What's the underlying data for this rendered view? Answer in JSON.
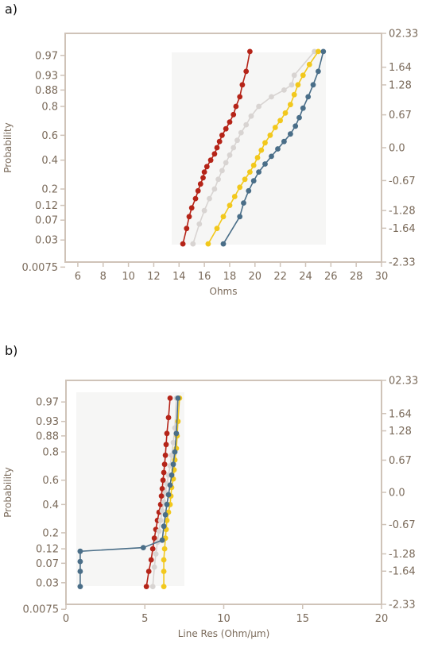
{
  "panels": [
    {
      "id": "a",
      "label": "a)",
      "chart_data": {
        "type": "scatter",
        "xlabel": "Ohms",
        "ylabel": "Probability",
        "xlim": [
          5,
          30
        ],
        "x_ticks": [
          "6",
          "8",
          "10",
          "12",
          "14",
          "16",
          "18",
          "20",
          "22",
          "24",
          "26",
          "28",
          "30"
        ],
        "x_tick_values": [
          6,
          8,
          10,
          12,
          14,
          16,
          18,
          20,
          22,
          24,
          26,
          28,
          30
        ],
        "y_scale": "normal-probability",
        "y_ticks": [
          "0.97",
          "0.93",
          "0.88",
          "0.8",
          "0.6",
          "0.4",
          "0.2",
          "0.12",
          "0.07",
          "0.03",
          "0.0075"
        ],
        "y_tick_values": [
          0.97,
          0.93,
          0.88,
          0.8,
          0.6,
          0.4,
          0.2,
          0.12,
          0.07,
          0.03,
          0.0075
        ],
        "y2_ticks": [
          "02.33",
          "1.64",
          "1.28",
          "0.67",
          "0.0",
          "-0.67",
          "-1.28",
          "-1.64",
          "-2.33"
        ],
        "y2_tick_values": [
          2.33,
          1.64,
          1.28,
          0.67,
          0.0,
          -0.67,
          -1.28,
          -1.64,
          -2.33
        ],
        "series": [
          {
            "color": "#b52418",
            "x": [
              14.3,
              14.6,
              14.8,
              15.0,
              15.3,
              15.5,
              15.7,
              15.9,
              16.0,
              16.2,
              16.5,
              16.8,
              17.0,
              17.2,
              17.4,
              17.7,
              18.0,
              18.3,
              18.5,
              18.8,
              19.0,
              19.3,
              19.6
            ],
            "p": [
              0.025,
              0.05,
              0.08,
              0.11,
              0.15,
              0.19,
              0.23,
              0.27,
              0.31,
              0.35,
              0.4,
              0.45,
              0.5,
              0.55,
              0.6,
              0.65,
              0.7,
              0.75,
              0.8,
              0.85,
              0.9,
              0.94,
              0.975
            ]
          },
          {
            "color": "#d8d4d2",
            "x": [
              15.1,
              15.6,
              16.0,
              16.4,
              16.8,
              17.1,
              17.4,
              17.7,
              18.0,
              18.3,
              18.6,
              18.9,
              19.3,
              19.7,
              20.3,
              21.3,
              22.3,
              22.9,
              23.1,
              24.7
            ],
            "p": [
              0.025,
              0.06,
              0.1,
              0.15,
              0.2,
              0.26,
              0.32,
              0.38,
              0.44,
              0.5,
              0.56,
              0.62,
              0.68,
              0.74,
              0.8,
              0.85,
              0.88,
              0.9,
              0.93,
              0.975
            ]
          },
          {
            "color": "#f2c81c",
            "x": [
              16.3,
              17.0,
              17.5,
              18.0,
              18.4,
              18.8,
              19.2,
              19.6,
              19.9,
              20.2,
              20.5,
              20.8,
              21.2,
              21.6,
              22.0,
              22.4,
              22.8,
              23.1,
              23.4,
              23.8,
              24.3,
              25.0
            ],
            "p": [
              0.025,
              0.05,
              0.08,
              0.12,
              0.16,
              0.21,
              0.26,
              0.31,
              0.36,
              0.42,
              0.48,
              0.54,
              0.6,
              0.66,
              0.71,
              0.76,
              0.81,
              0.86,
              0.9,
              0.93,
              0.955,
              0.975
            ]
          },
          {
            "color": "#4a6e88",
            "x": [
              17.5,
              18.8,
              19.1,
              19.5,
              19.9,
              20.3,
              20.8,
              21.3,
              21.8,
              22.3,
              22.8,
              23.2,
              23.5,
              23.8,
              24.2,
              24.6,
              25.0,
              25.4
            ],
            "p": [
              0.025,
              0.08,
              0.13,
              0.19,
              0.25,
              0.31,
              0.37,
              0.43,
              0.49,
              0.55,
              0.61,
              0.67,
              0.73,
              0.79,
              0.85,
              0.9,
              0.94,
              0.975
            ]
          }
        ]
      }
    },
    {
      "id": "b",
      "label": "b)",
      "chart_data": {
        "type": "scatter",
        "xlabel": "Line Res (Ohm/μm)",
        "ylabel": "Probability",
        "xlim": [
          0,
          20
        ],
        "x_ticks": [
          "0",
          "5",
          "10",
          "15",
          "20"
        ],
        "x_tick_values": [
          0,
          5,
          10,
          15,
          20
        ],
        "y_scale": "normal-probability",
        "y_ticks": [
          "0.97",
          "0.93",
          "0.88",
          "0.8",
          "0.6",
          "0.4",
          "0.2",
          "0.12",
          "0.07",
          "0.03",
          "0.0075"
        ],
        "y_tick_values": [
          0.97,
          0.93,
          0.88,
          0.8,
          0.6,
          0.4,
          0.2,
          0.12,
          0.07,
          0.03,
          0.0075
        ],
        "y2_ticks": [
          "02.33",
          "1.64",
          "1.28",
          "0.67",
          "0.0",
          "-0.67",
          "-1.28",
          "-1.64",
          "-2.33"
        ],
        "y2_tick_values": [
          2.33,
          1.64,
          1.28,
          0.67,
          0.0,
          -0.67,
          -1.28,
          -1.64,
          -2.33
        ],
        "series": [
          {
            "color": "#b52418",
            "x": [
              5.1,
              5.25,
              5.4,
              5.5,
              5.6,
              5.7,
              5.8,
              5.9,
              6.0,
              6.05,
              6.1,
              6.15,
              6.2,
              6.25,
              6.3,
              6.35,
              6.4,
              6.5,
              6.6
            ],
            "p": [
              0.025,
              0.05,
              0.08,
              0.12,
              0.17,
              0.22,
              0.28,
              0.34,
              0.4,
              0.47,
              0.53,
              0.6,
              0.66,
              0.72,
              0.78,
              0.84,
              0.89,
              0.94,
              0.975
            ]
          },
          {
            "color": "#d8d4d2",
            "x": [
              5.5,
              5.6,
              5.7,
              5.8,
              5.9,
              6.0,
              6.1,
              6.2,
              6.3,
              6.4,
              6.5,
              6.6,
              6.7,
              6.8,
              6.9,
              7.0
            ],
            "p": [
              0.025,
              0.06,
              0.1,
              0.15,
              0.21,
              0.28,
              0.35,
              0.42,
              0.5,
              0.57,
              0.64,
              0.71,
              0.78,
              0.85,
              0.91,
              0.975
            ]
          },
          {
            "color": "#f2c81c",
            "x": [
              6.2,
              6.2,
              6.2,
              6.25,
              6.3,
              6.35,
              6.4,
              6.5,
              6.6,
              6.65,
              6.7,
              6.8,
              6.85,
              6.9,
              7.0,
              7.05,
              7.1,
              7.2
            ],
            "p": [
              0.025,
              0.05,
              0.08,
              0.12,
              0.17,
              0.22,
              0.28,
              0.34,
              0.4,
              0.47,
              0.54,
              0.61,
              0.68,
              0.75,
              0.82,
              0.88,
              0.93,
              0.975
            ]
          },
          {
            "color": "#4a6e88",
            "x": [
              0.9,
              0.9,
              0.9,
              0.9,
              4.9,
              6.1,
              6.2,
              6.3,
              6.4,
              6.5,
              6.6,
              6.7,
              6.8,
              6.9,
              7.0,
              7.1
            ],
            "p": [
              0.025,
              0.05,
              0.075,
              0.11,
              0.125,
              0.16,
              0.24,
              0.32,
              0.4,
              0.48,
              0.56,
              0.64,
              0.72,
              0.8,
              0.89,
              0.975
            ]
          }
        ]
      }
    }
  ]
}
